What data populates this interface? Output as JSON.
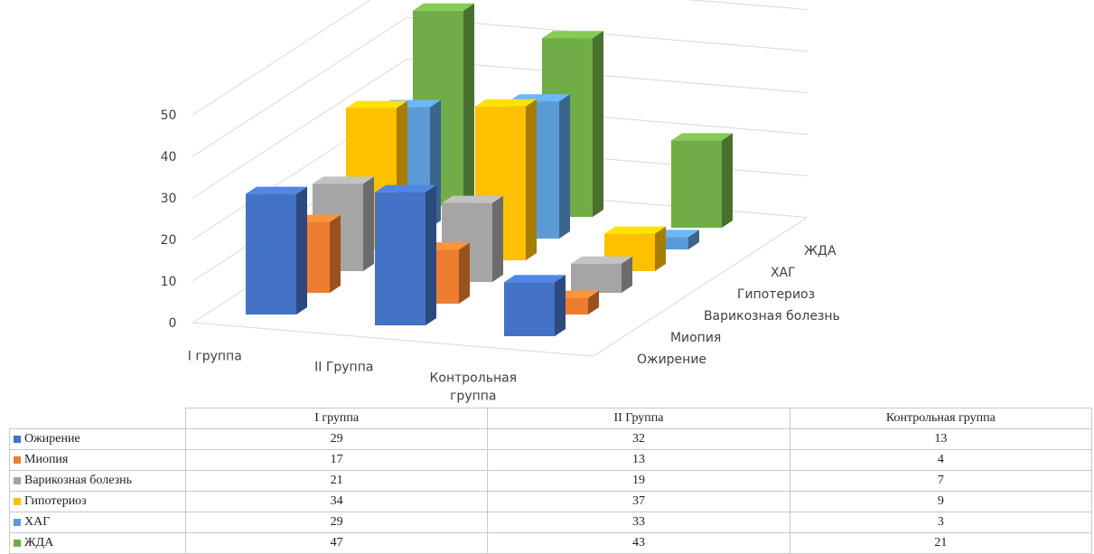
{
  "chart_data": {
    "type": "bar",
    "subtype": "3d-column",
    "categories": [
      "I группа",
      "II Группа",
      "Контрольная группа"
    ],
    "series": [
      {
        "name": "Ожирение",
        "color": "#4472C4",
        "values": [
          29,
          32,
          13
        ]
      },
      {
        "name": "Миопия",
        "color": "#ED7D31",
        "values": [
          17,
          13,
          4
        ]
      },
      {
        "name": "Варикозная болезнь",
        "color": "#A5A5A5",
        "values": [
          21,
          19,
          7
        ]
      },
      {
        "name": "Гипотериоз",
        "color": "#FFC000",
        "values": [
          34,
          37,
          9
        ]
      },
      {
        "name": "ХАГ",
        "color": "#5B9BD5",
        "values": [
          29,
          33,
          3
        ]
      },
      {
        "name": "ЖДА",
        "color": "#70AD47",
        "values": [
          47,
          43,
          21
        ]
      }
    ],
    "ylim": [
      0,
      50
    ],
    "yticks": [
      "0",
      "10",
      "20",
      "30",
      "40",
      "50"
    ],
    "grid": true,
    "data_table": true,
    "category_labels": [
      [
        "I группа"
      ],
      [
        "II Группа"
      ],
      [
        "Контрольная",
        "группа"
      ]
    ]
  }
}
